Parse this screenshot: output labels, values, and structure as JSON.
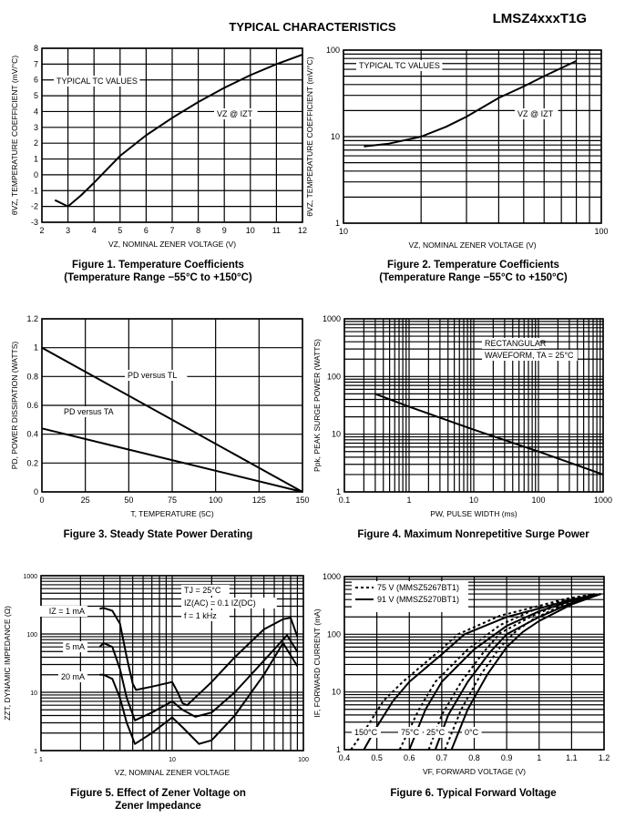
{
  "header": {
    "title": "TYPICAL CHARACTERISTICS",
    "part_number": "LMSZ4xxxT1G"
  },
  "chart_data": [
    {
      "type": "line",
      "caption": [
        "Figure 1. Temperature Coefficients",
        "(Temperature Range −55°C to +150°C)"
      ],
      "xlabel": "VZ, NOMINAL ZENER VOLTAGE (V)",
      "ylabel": "θVZ, TEMPERATURE COEFFICIENT (mV/°C)",
      "xscale": "linear",
      "yscale": "linear",
      "xlim": [
        2,
        12
      ],
      "ylim": [
        -3,
        8
      ],
      "xticks": [
        2,
        3,
        4,
        5,
        6,
        7,
        8,
        9,
        10,
        11,
        12
      ],
      "yticks": [
        -3,
        -2,
        -1,
        0,
        1,
        2,
        3,
        4,
        5,
        6,
        7,
        8
      ],
      "grid": true,
      "annotations": [
        "TYPICAL TC VALUES",
        "VZ @ IZT"
      ],
      "series": [
        {
          "x": [
            2.5,
            3,
            3.5,
            4,
            5,
            6,
            7,
            8,
            9,
            10,
            11,
            12
          ],
          "y": [
            -1.6,
            -2,
            -1.3,
            -0.5,
            1.2,
            2.5,
            3.6,
            4.6,
            5.5,
            6.3,
            7,
            7.6
          ],
          "style": "solid"
        }
      ]
    },
    {
      "type": "line",
      "caption": [
        "Figure 2. Temperature Coefficients",
        "(Temperature Range −55°C to +150°C)"
      ],
      "xlabel": "VZ, NOMINAL ZENER VOLTAGE (V)",
      "ylabel": "θVZ, TEMPERATURE COEFFICIENT (mV/°C)",
      "xscale": "log",
      "yscale": "log",
      "xlim": [
        10,
        100
      ],
      "ylim": [
        1,
        100
      ],
      "xticks": [
        10,
        100
      ],
      "yticks": [
        1,
        10,
        100
      ],
      "grid": true,
      "annotations": [
        "TYPICAL TC VALUES",
        "VZ @ IZT"
      ],
      "series": [
        {
          "x": [
            12,
            15,
            20,
            25,
            30,
            40,
            50,
            60,
            80
          ],
          "y": [
            7.7,
            8.3,
            10,
            13,
            17,
            28,
            38,
            50,
            75
          ],
          "style": "solid"
        }
      ]
    },
    {
      "type": "line",
      "caption": [
        "Figure 3. Steady State Power Derating"
      ],
      "xlabel": "T, TEMPERATURE (5C)",
      "ylabel": "PD, POWER DISSIPATION (WATTS)",
      "xscale": "linear",
      "yscale": "linear",
      "xlim": [
        0,
        150
      ],
      "ylim": [
        0,
        1.2
      ],
      "xticks": [
        0,
        25,
        50,
        75,
        100,
        125,
        150
      ],
      "yticks": [
        0,
        0.2,
        0.4,
        0.6,
        0.8,
        1.0,
        1.2
      ],
      "grid": true,
      "annotations": [
        "PD versus TL",
        "PD versus TA"
      ],
      "series": [
        {
          "name": "PD versus TL",
          "x": [
            0,
            150
          ],
          "y": [
            1.0,
            0
          ],
          "style": "solid"
        },
        {
          "name": "PD versus TA",
          "x": [
            0,
            150
          ],
          "y": [
            0.44,
            0
          ],
          "style": "solid"
        }
      ]
    },
    {
      "type": "line",
      "caption": [
        "Figure 4. Maximum Nonrepetitive Surge Power"
      ],
      "xlabel": "PW, PULSE WIDTH (ms)",
      "ylabel": "Ppk, PEAK SURGE POWER (WATTS)",
      "xscale": "log",
      "yscale": "log",
      "xlim": [
        0.1,
        1000
      ],
      "ylim": [
        1,
        1000
      ],
      "xticks": [
        0.1,
        1,
        10,
        100,
        1000
      ],
      "yticks": [
        1,
        10,
        100,
        1000
      ],
      "grid": true,
      "annotations": [
        "RECTANGULAR",
        "WAVEFORM, TA = 25°C"
      ],
      "series": [
        {
          "x": [
            0.3,
            1,
            10,
            100,
            1000
          ],
          "y": [
            50,
            30,
            12,
            5,
            2
          ],
          "style": "solid"
        }
      ]
    },
    {
      "type": "line",
      "caption": [
        "Figure 5. Effect of Zener Voltage on",
        "Zener Impedance"
      ],
      "xlabel": "VZ, NOMINAL ZENER VOLTAGE",
      "ylabel": "ZZT, DYNAMIC IMPEDANCE (Ω)",
      "xscale": "log",
      "yscale": "log",
      "xlim": [
        1,
        100
      ],
      "ylim": [
        1,
        1000
      ],
      "xticks": [
        1,
        10,
        100
      ],
      "yticks": [
        1,
        10,
        100,
        1000
      ],
      "grid": true,
      "annotations": [
        "TJ = 25°C",
        "IZ(AC) = 0.1 IZ(DC)",
        "f = 1 kHz"
      ],
      "series": [
        {
          "name": "IZ = 1 mA",
          "x": [
            2.8,
            3,
            3.5,
            4,
            4.5,
            5,
            5.3,
            7,
            10,
            11,
            12,
            13,
            20,
            30,
            50,
            70,
            80,
            90
          ],
          "y": [
            270,
            280,
            250,
            150,
            40,
            14,
            11,
            12.5,
            15,
            10,
            6.5,
            6,
            15,
            40,
            120,
            180,
            190,
            90
          ],
          "style": "solid"
        },
        {
          "name": "5 mA",
          "x": [
            2.8,
            3,
            3.5,
            4,
            4.5,
            5.2,
            7,
            10,
            12,
            15,
            20,
            30,
            50,
            75,
            90
          ],
          "y": [
            60,
            70,
            60,
            25,
            8,
            3.3,
            4.5,
            7,
            5,
            3.8,
            4.5,
            10,
            35,
            95,
            50
          ],
          "style": "solid"
        },
        {
          "name": "20 mA",
          "x": [
            2.8,
            3,
            3.5,
            4,
            4.5,
            5.2,
            7,
            10,
            12,
            16,
            20,
            30,
            50,
            70,
            90
          ],
          "y": [
            20,
            20,
            17,
            8,
            3,
            1.3,
            2,
            3.7,
            2.5,
            1.3,
            1.5,
            4,
            20,
            70,
            28
          ],
          "style": "solid"
        }
      ]
    },
    {
      "type": "line",
      "caption": [
        "Figure 6. Typical Forward Voltage"
      ],
      "xlabel": "VF, FORWARD VOLTAGE (V)",
      "ylabel": "IF, FORWARD CURRENT (mA)",
      "xscale": "linear",
      "yscale": "log",
      "xlim": [
        0.4,
        1.2
      ],
      "ylim": [
        1,
        1000
      ],
      "xticks": [
        0.4,
        0.5,
        0.6,
        0.7,
        0.8,
        0.9,
        1.0,
        1.1,
        1.2
      ],
      "yticks": [
        1,
        10,
        100,
        1000
      ],
      "grid": true,
      "legend": {
        "position": "top-left",
        "entries": [
          {
            "label": "75 V (MMSZ5267BT1)",
            "style": "dashed"
          },
          {
            "label": "91 V (MMSZ5270BT1)",
            "style": "solid"
          }
        ]
      },
      "annotations": [
        "150°C",
        "75°C",
        "25°C",
        "0°C"
      ],
      "series": [
        {
          "name": "91 V 150°C",
          "x": [
            0.46,
            0.5,
            0.55,
            0.6,
            0.7,
            0.77,
            0.9,
            1.0,
            1.1,
            1.19
          ],
          "y": [
            1,
            2.5,
            7,
            15,
            45,
            100,
            200,
            280,
            400,
            500
          ],
          "style": "solid"
        },
        {
          "name": "91 V 75°C",
          "x": [
            0.6,
            0.65,
            0.7,
            0.8,
            0.9,
            1.0,
            1.1,
            1.19
          ],
          "y": [
            1,
            5,
            15,
            55,
            140,
            250,
            380,
            500
          ],
          "style": "solid"
        },
        {
          "name": "91 V 25°C",
          "x": [
            0.68,
            0.72,
            0.78,
            0.85,
            0.9,
            1.0,
            1.1,
            1.19
          ],
          "y": [
            1,
            4,
            15,
            50,
            100,
            200,
            350,
            500
          ],
          "style": "solid"
        },
        {
          "name": "91 V 0°C",
          "x": [
            0.73,
            0.78,
            0.84,
            0.9,
            0.95,
            1.0,
            1.1,
            1.19
          ],
          "y": [
            1,
            5,
            20,
            60,
            110,
            170,
            330,
            500
          ],
          "style": "solid"
        },
        {
          "name": "75 V 150°C",
          "x": [
            0.42,
            0.47,
            0.52,
            0.58,
            0.68,
            0.75,
            0.88,
            0.98,
            1.08,
            1.17
          ],
          "y": [
            1,
            2.5,
            7,
            15,
            45,
            100,
            210,
            290,
            410,
            500
          ],
          "style": "dashed"
        },
        {
          "name": "75 V 75°C",
          "x": [
            0.57,
            0.63,
            0.68,
            0.78,
            0.88,
            0.98,
            1.08,
            1.17
          ],
          "y": [
            1,
            5,
            15,
            55,
            145,
            260,
            390,
            500
          ],
          "style": "dashed"
        },
        {
          "name": "75 V 25°C",
          "x": [
            0.66,
            0.7,
            0.76,
            0.83,
            0.88,
            0.98,
            1.08,
            1.17
          ],
          "y": [
            1,
            4,
            15,
            50,
            105,
            210,
            360,
            500
          ],
          "style": "dashed"
        },
        {
          "name": "75 V 0°C",
          "x": [
            0.71,
            0.76,
            0.82,
            0.88,
            0.93,
            0.98,
            1.08,
            1.17
          ],
          "y": [
            1,
            5,
            20,
            60,
            115,
            180,
            340,
            500
          ],
          "style": "dashed"
        }
      ]
    }
  ]
}
